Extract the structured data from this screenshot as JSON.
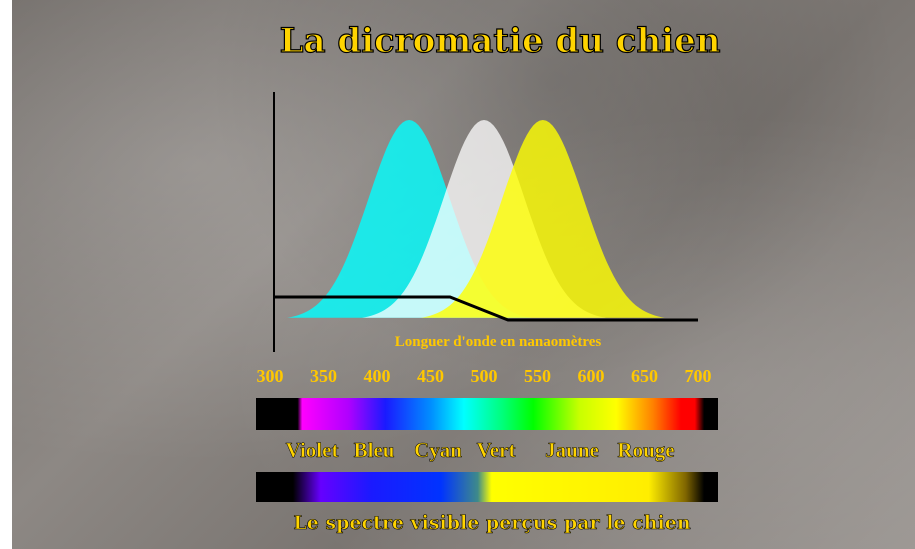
{
  "chart_data": {
    "type": "area",
    "title": "La dicromatie du chien",
    "xlabel": "Longuer d'onde en nanaomètres",
    "xlim": [
      300,
      700
    ],
    "x_ticks": [
      "300",
      "350",
      "400",
      "450",
      "500",
      "550",
      "600",
      "650",
      "700"
    ],
    "series": [
      {
        "peak_nm": 430,
        "color": "#00ffff"
      },
      {
        "peak_nm": 500,
        "color": "#ffffff"
      },
      {
        "peak_nm": 555,
        "color": "#ffff00"
      }
    ],
    "spectrum_labels": [
      "Violet",
      "Bleu",
      "Cyan",
      "Vert",
      "Jaune",
      "Rouge"
    ],
    "dog_spectrum_caption": "Le spectre visible perçus par le chien"
  },
  "colors": {
    "title": "#ffd400",
    "text": "#ffc800",
    "axis": "#000000"
  }
}
